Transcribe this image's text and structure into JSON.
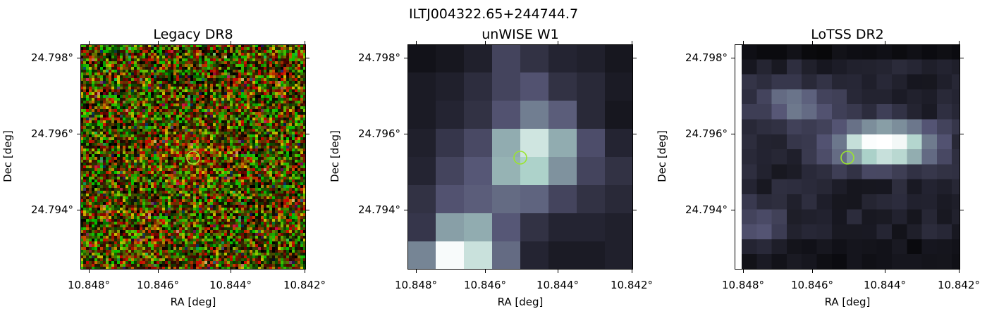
{
  "figure": {
    "title": "ILTJ004322.65+244744.7",
    "panels": [
      {
        "id": "legacy",
        "title": "Legacy DR8",
        "xlabel": "RA [deg]",
        "ylabel": "Dec [deg]",
        "xticks": [
          "10.848°",
          "10.846°",
          "10.844°",
          "10.842°"
        ],
        "yticks": [
          "24.798°",
          "24.796°",
          "24.794°"
        ],
        "image_style": "rgb-noise"
      },
      {
        "id": "unwise",
        "title": "unWISE W1",
        "xlabel": "RA [deg]",
        "ylabel": "Dec [deg]",
        "xticks": [
          "10.848°",
          "10.846°",
          "10.844°",
          "10.842°"
        ],
        "yticks": [
          "24.798°",
          "24.796°",
          "24.794°"
        ],
        "image_style": "bone-coarse"
      },
      {
        "id": "lotss",
        "title": "LoTSS DR2",
        "xlabel": "RA [deg]",
        "ylabel": "Dec [deg]",
        "xticks": [
          "10.848°",
          "10.846°",
          "10.844°",
          "10.842°"
        ],
        "yticks": [
          "24.798°",
          "24.796°",
          "24.794°"
        ],
        "image_style": "bone-blocky"
      }
    ],
    "marker": {
      "shape": "circle",
      "color": "#9be52e"
    }
  }
}
